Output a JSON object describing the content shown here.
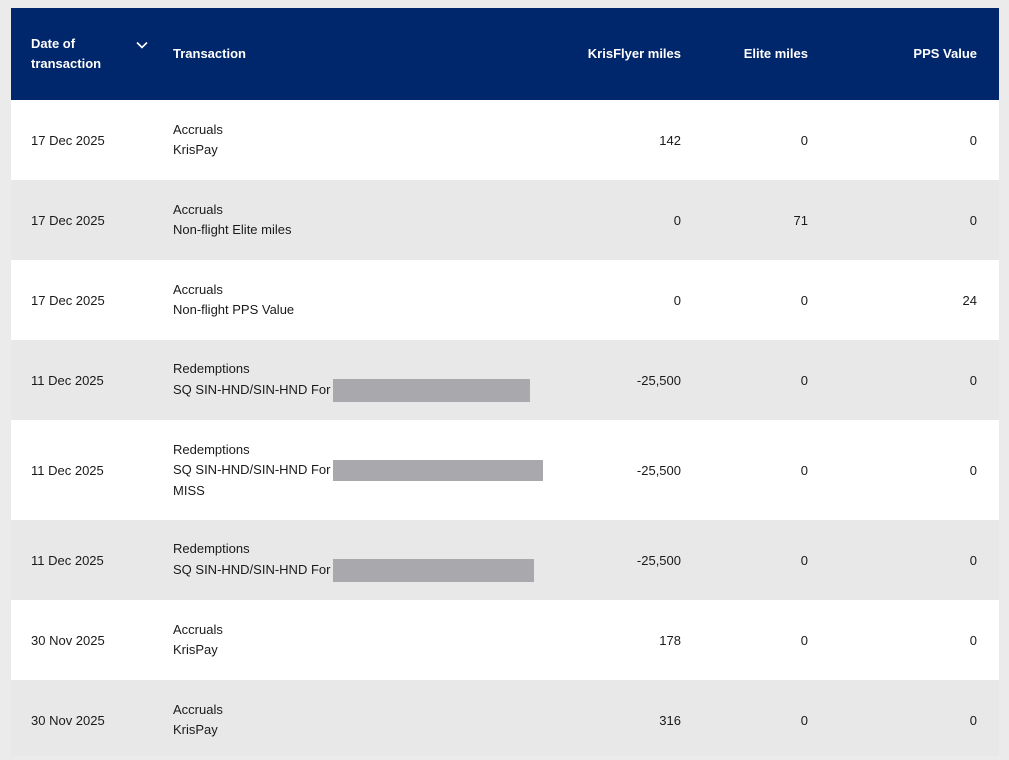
{
  "header": {
    "date_label_line1": "Date of",
    "date_label_line2": "transaction",
    "transaction_label": "Transaction",
    "krisflyer_label": "KrisFlyer miles",
    "elite_label": "Elite miles",
    "pps_label": "PPS Value",
    "sort_icon": "chevron-down-icon"
  },
  "rows": [
    {
      "date": "17 Dec 2025",
      "type": "Accruals",
      "detail": "KrisPay",
      "detail2": "",
      "kf": "142",
      "elite": "0",
      "pps": "0"
    },
    {
      "date": "17 Dec 2025",
      "type": "Accruals",
      "detail": "Non-flight Elite miles",
      "detail2": "",
      "kf": "0",
      "elite": "71",
      "pps": "0"
    },
    {
      "date": "17 Dec 2025",
      "type": "Accruals",
      "detail": "Non-flight PPS Value",
      "detail2": "",
      "kf": "0",
      "elite": "0",
      "pps": "24"
    },
    {
      "date": "11 Dec 2025",
      "type": "Redemptions",
      "detail": "SQ SIN-HND/SIN-HND For",
      "detail2": "",
      "kf": "-25,500",
      "elite": "0",
      "pps": "0"
    },
    {
      "date": "11 Dec 2025",
      "type": "Redemptions",
      "detail": "SQ SIN-HND/SIN-HND For",
      "detail2": "MISS",
      "kf": "-25,500",
      "elite": "0",
      "pps": "0"
    },
    {
      "date": "11 Dec 2025",
      "type": "Redemptions",
      "detail": "SQ SIN-HND/SIN-HND For",
      "detail2": "",
      "kf": "-25,500",
      "elite": "0",
      "pps": "0"
    },
    {
      "date": "30 Nov 2025",
      "type": "Accruals",
      "detail": "KrisPay",
      "detail2": "",
      "kf": "178",
      "elite": "0",
      "pps": "0"
    },
    {
      "date": "30 Nov 2025",
      "type": "Accruals",
      "detail": "KrisPay",
      "detail2": "",
      "kf": "316",
      "elite": "0",
      "pps": "0"
    }
  ]
}
